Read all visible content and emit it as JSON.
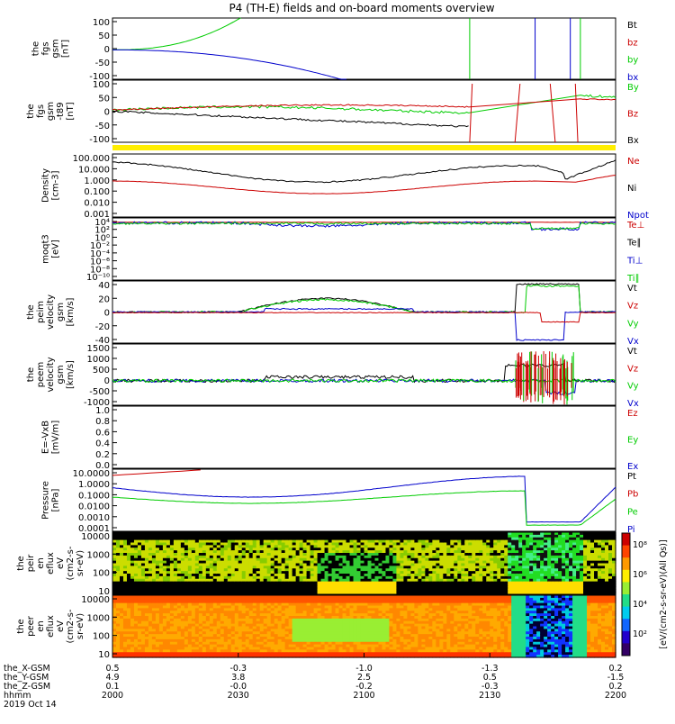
{
  "title": "P4 (TH-E) fields and on-board moments overview",
  "colors": {
    "black": "#000000",
    "red": "#cc0000",
    "green": "#00cc00",
    "blue": "#0000cc",
    "yellow": "#ffee00"
  },
  "panels": [
    {
      "id": "fgs",
      "ylabel": [
        "the",
        "fgs",
        "gsm",
        "[nT]"
      ],
      "ticks": [
        "100",
        "50",
        "0",
        "-50",
        "-100"
      ],
      "legend": [
        {
          "text": "Bt",
          "color": "black"
        },
        {
          "text": "bz",
          "color": "red"
        },
        {
          "text": "by",
          "color": "green"
        },
        {
          "text": "bx",
          "color": "blue"
        }
      ]
    },
    {
      "id": "fgs_tt89",
      "ylabel": [
        "the",
        "fgs",
        "gsm",
        "-t89",
        "[nT]"
      ],
      "ticks": [
        "100",
        "50",
        "0",
        "-50",
        "-100"
      ],
      "legend": [
        {
          "text": "By",
          "color": "green"
        },
        {
          "text": "Bz",
          "color": "red"
        },
        {
          "text": "Bx",
          "color": "black"
        }
      ]
    },
    {
      "id": "density",
      "ylabel": [
        "Density",
        "[cm-3]"
      ],
      "ticks": [
        "100.000",
        "10.000",
        "1.000",
        "0.100",
        "0.010",
        "0.001"
      ],
      "legend": [
        {
          "text": "Ne",
          "color": "red"
        },
        {
          "text": "Ni",
          "color": "black"
        },
        {
          "text": "Npot",
          "color": "blue"
        }
      ]
    },
    {
      "id": "temperature",
      "ylabel": [
        "moqt3",
        "[eV]"
      ],
      "ticks": [
        "10⁴",
        "10²",
        "10⁰",
        "10⁻²",
        "10⁻⁴",
        "10⁻⁶",
        "10⁻⁸",
        "10⁻¹⁰"
      ],
      "legend": [
        {
          "text": "Te⊥",
          "color": "red"
        },
        {
          "text": "Te∥",
          "color": "black"
        },
        {
          "text": "Ti⊥",
          "color": "blue"
        },
        {
          "text": "Ti∥",
          "color": "green"
        }
      ]
    },
    {
      "id": "peim_velocity",
      "ylabel": [
        "the",
        "peim",
        "velocity",
        "gsm",
        "[km/s]"
      ],
      "ticks": [
        "40",
        "20",
        "0",
        "-20",
        "-40"
      ],
      "legend": [
        {
          "text": "Vt",
          "color": "black"
        },
        {
          "text": "Vz",
          "color": "red"
        },
        {
          "text": "Vy",
          "color": "green"
        },
        {
          "text": "Vx",
          "color": "blue"
        }
      ]
    },
    {
      "id": "peem_velocity",
      "ylabel": [
        "the",
        "peem",
        "velocity",
        "gsm",
        "[km/s]"
      ],
      "ticks": [
        "1500",
        "1000",
        "500",
        "0",
        "-500",
        "-1000"
      ],
      "legend": [
        {
          "text": "Vt",
          "color": "black"
        },
        {
          "text": "Vz",
          "color": "red"
        },
        {
          "text": "Vy",
          "color": "green"
        },
        {
          "text": "Vx",
          "color": "blue"
        }
      ]
    },
    {
      "id": "efield",
      "ylabel": [
        "E=-VxB",
        "[mV/m]"
      ],
      "ticks": [
        "1.0",
        "0.8",
        "0.6",
        "0.4",
        "0.2",
        "0.0"
      ],
      "legend": [
        {
          "text": "Ez",
          "color": "red"
        },
        {
          "text": "Ey",
          "color": "green"
        },
        {
          "text": "Ex",
          "color": "blue"
        }
      ]
    },
    {
      "id": "pressure",
      "ylabel": [
        "Pressure",
        "[nPa]"
      ],
      "ticks": [
        "10.0000",
        "1.0000",
        "0.1000",
        "0.0100",
        "0.0010",
        "0.0001"
      ],
      "legend": [
        {
          "text": "Pt",
          "color": "black"
        },
        {
          "text": "Pb",
          "color": "red"
        },
        {
          "text": "Pe",
          "color": "green"
        },
        {
          "text": "Pi",
          "color": "blue"
        }
      ]
    },
    {
      "id": "peir_spec",
      "ylabel": [
        "the",
        "peir",
        "en",
        "eflux",
        "eV",
        "(cm2-s-",
        "sr-eV)"
      ],
      "ticks": [
        "10000",
        "1000",
        "100",
        "10"
      ],
      "legend": []
    },
    {
      "id": "peer_spec",
      "ylabel": [
        "the",
        "peer",
        "en",
        "eflux",
        "eV",
        "(cm2-s-",
        "sr-eV)"
      ],
      "ticks": [
        "10000",
        "1000",
        "100",
        "10"
      ],
      "legend": []
    }
  ],
  "colorbar": {
    "ticks": [
      "10⁸",
      "10⁶",
      "10⁴",
      "10²"
    ],
    "label": "[eV/(cm2-s-sr-eV)(All Qs)]"
  },
  "xaxis": {
    "row_labels": [
      "the_X-GSM",
      "the_Y-GSM",
      "the_Z-GSM",
      "hhmm",
      "2019 Oct 14"
    ],
    "columns": [
      {
        "x": "0.5",
        "y": "4.9",
        "z": "0.1",
        "t": "2000"
      },
      {
        "x": "-0.3",
        "y": "3.8",
        "z": "-0.0",
        "t": "2030"
      },
      {
        "x": "-1.0",
        "y": "2.5",
        "z": "-0.2",
        "t": "2100"
      },
      {
        "x": "-1.3",
        "y": "0.5",
        "z": "-0.3",
        "t": "2130"
      },
      {
        "x": "0.2",
        "y": "-1.5",
        "z": "0.2",
        "t": "2200"
      }
    ]
  },
  "chart_data": [
    {
      "type": "line",
      "title": "P4 (TH-E) fields and on-board moments overview",
      "ylabel": "the fgs gsm [nT]",
      "ylim": [
        -100,
        100
      ],
      "x_time_range": [
        "2000",
        "2200"
      ],
      "series": [
        {
          "name": "Bt",
          "x": [
            "2000",
            "2130"
          ],
          "values": [
            null,
            null
          ]
        },
        {
          "name": "bz",
          "x": [
            "2000",
            "2030",
            "2100"
          ],
          "values": [
            null,
            null,
            null
          ]
        },
        {
          "name": "by",
          "x": [
            "2000",
            "2010",
            "2020",
            "2030",
            "2040"
          ],
          "values": [
            -3,
            2,
            20,
            55,
            100
          ]
        },
        {
          "name": "bx",
          "x": [
            "2000",
            "2010",
            "2020",
            "2030",
            "2040"
          ],
          "values": [
            -3,
            -8,
            -20,
            -45,
            -100
          ]
        }
      ]
    },
    {
      "type": "line",
      "ylabel": "the fgs gsm -t89 [nT]",
      "ylim": [
        -125,
        100
      ],
      "series": [
        {
          "name": "By",
          "x": [
            "2000",
            "2030",
            "2100",
            "2130"
          ],
          "values": [
            5,
            8,
            12,
            0
          ]
        },
        {
          "name": "Bz",
          "x": [
            "2000",
            "2030",
            "2100",
            "2130"
          ],
          "values": [
            0,
            5,
            15,
            10
          ]
        },
        {
          "name": "Bx",
          "x": [
            "2000",
            "2030",
            "2100",
            "2130"
          ],
          "values": [
            0,
            -5,
            -20,
            -45
          ]
        }
      ]
    },
    {
      "type": "line",
      "ylabel": "Density [cm-3]",
      "yscale": "log",
      "ylim": [
        0.001,
        100
      ],
      "series": [
        {
          "name": "Ni",
          "x": [
            "2000",
            "2030",
            "2100",
            "2130",
            "2200"
          ],
          "values": [
            20,
            15,
            4,
            70,
            60
          ]
        },
        {
          "name": "Ne",
          "x": [
            "2000",
            "2030",
            "2100",
            "2130",
            "2200"
          ],
          "values": [
            0.6,
            0.5,
            0.1,
            0.9,
            0.5
          ]
        }
      ]
    },
    {
      "type": "line",
      "ylabel": "moqt3 [eV]",
      "yscale": "log",
      "series": [
        {
          "name": "Te⊥",
          "x": [
            "2000",
            "2100",
            "2200"
          ],
          "values": [
            5000,
            5000,
            5000
          ]
        },
        {
          "name": "Ti⊥",
          "x": [
            "2000",
            "2100",
            "2200"
          ],
          "values": [
            3000,
            500,
            3000
          ]
        }
      ]
    },
    {
      "type": "line",
      "ylabel": "the peim velocity gsm [km/s]",
      "ylim": [
        -40,
        40
      ],
      "series": [
        {
          "name": "Vt",
          "x": [
            "2000",
            "2050",
            "2130",
            "2145",
            "2200"
          ],
          "values": [
            0,
            18,
            2,
            40,
            0
          ]
        },
        {
          "name": "Vz",
          "x": [
            "2000",
            "2050",
            "2130",
            "2145",
            "2200"
          ],
          "values": [
            0,
            0,
            0,
            -10,
            0
          ]
        },
        {
          "name": "Vy",
          "x": [
            "2000",
            "2050",
            "2130",
            "2145",
            "2200"
          ],
          "values": [
            0,
            20,
            0,
            40,
            0
          ]
        },
        {
          "name": "Vx",
          "x": [
            "2000",
            "2050",
            "2130",
            "2145",
            "2200"
          ],
          "values": [
            0,
            5,
            0,
            -38,
            0
          ]
        }
      ]
    },
    {
      "type": "line",
      "ylabel": "the peem velocity gsm [km/s]",
      "ylim": [
        -1200,
        1500
      ],
      "series": [
        {
          "name": "Vt",
          "x": [
            "2000",
            "2100",
            "2140",
            "2200"
          ],
          "values": [
            0,
            200,
            800,
            100
          ]
        },
        {
          "name": "Vz",
          "x": [
            "2000",
            "2100",
            "2140",
            "2200"
          ],
          "values": [
            0,
            0,
            1200,
            0
          ]
        },
        {
          "name": "Vy",
          "x": [
            "2000",
            "2100",
            "2140",
            "2200"
          ],
          "values": [
            0,
            0,
            600,
            0
          ]
        },
        {
          "name": "Vx",
          "x": [
            "2000",
            "2100",
            "2140",
            "2200"
          ],
          "values": [
            0,
            0,
            -600,
            0
          ]
        }
      ]
    },
    {
      "type": "line",
      "ylabel": "E=-VxB [mV/m]",
      "ylim": [
        0,
        1
      ],
      "series": []
    },
    {
      "type": "line",
      "ylabel": "Pressure [nPa]",
      "yscale": "log",
      "ylim": [
        0.0001,
        10
      ],
      "series": [
        {
          "name": "Pi",
          "x": [
            "2000",
            "2045",
            "2130",
            "2200"
          ],
          "values": [
            0.6,
            0.03,
            0.0015,
            2
          ]
        },
        {
          "name": "Pe",
          "x": [
            "2000",
            "2045",
            "2130",
            "2200"
          ],
          "values": [
            0.08,
            0.03,
            0.0012,
            0.3
          ]
        }
      ]
    },
    {
      "type": "heatmap",
      "ylabel": "the peir en eflux",
      "yscale": "log",
      "ylim": [
        10,
        10000
      ]
    },
    {
      "type": "heatmap",
      "ylabel": "the peer en eflux",
      "yscale": "log",
      "ylim": [
        10,
        10000
      ]
    }
  ]
}
